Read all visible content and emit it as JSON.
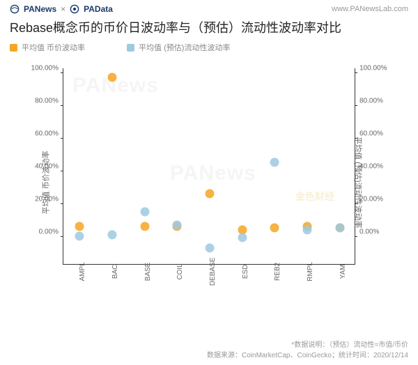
{
  "header": {
    "logo1": "PANews",
    "logo2": "PAData",
    "sep": "×",
    "url": "www.PANewsLab.com"
  },
  "title": "Rebase概念币的币价日波动率与（预估）流动性波动率对比",
  "legend": {
    "s1": {
      "label": "平均值 币价波动率",
      "color": "#f5a623"
    },
    "s2": {
      "label": "平均值 (预估)流动性波动率",
      "color": "#9ec9e2"
    }
  },
  "chart": {
    "type": "scatter",
    "background": "#ffffff",
    "y_left": {
      "label": "平均值 币价波动率",
      "min": -20,
      "max": 100,
      "ticks": [
        0,
        20,
        40,
        60,
        80,
        100
      ],
      "fmt": "%"
    },
    "y_right": {
      "label": "平均值 (预估)流动性波动率",
      "min": -20,
      "max": 100,
      "ticks": [
        0,
        20,
        40,
        60,
        80,
        100
      ],
      "fmt": "%"
    },
    "categories": [
      "AMPL",
      "BAC",
      "BASE",
      "COIL",
      "DEBASE",
      "ESD",
      "REB2",
      "RMPL",
      "YAM"
    ],
    "series": [
      {
        "name": "价格波动",
        "color": "#f5a623",
        "axis": "left",
        "values": [
          3,
          94,
          3,
          3,
          23,
          1,
          2,
          3,
          2
        ]
      },
      {
        "name": "流动波动",
        "color": "#9ec9e2",
        "axis": "right",
        "values": [
          -3,
          -2,
          12,
          4,
          -10,
          -4,
          42,
          1,
          2
        ]
      }
    ],
    "marker_size": 13,
    "marker_opacity": 0.85
  },
  "footer": {
    "line1": "*数据说明：（预估）流动性=市值/币价",
    "line2": "数据来源：CoinMarketCap、CoinGecko；统计时间：2020/12/14"
  },
  "watermarks": {
    "wm1": "PANews",
    "wm2": "PANews",
    "gold": "金色财经"
  }
}
